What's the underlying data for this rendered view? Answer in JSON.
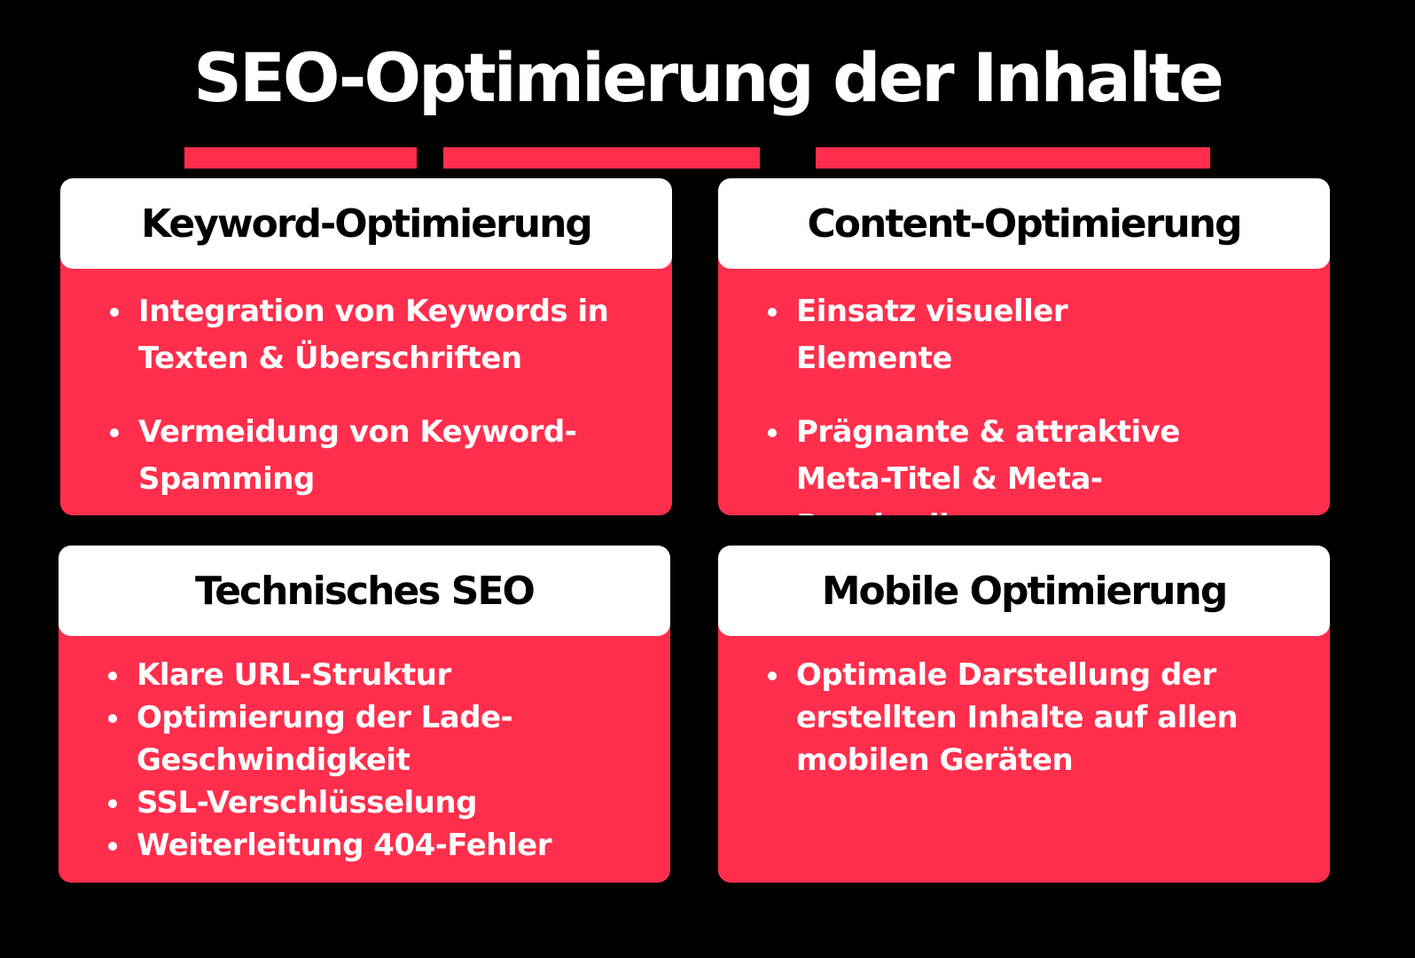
{
  "title": "SEO-Optimierung der Inhalte",
  "colors": {
    "background": "#000000",
    "accent": "#ff2e4c",
    "header_bg": "#ffffff"
  },
  "cards": [
    {
      "heading": "Keyword-Optimierung",
      "items": [
        "Integration von Keywords in Texten & Überschriften",
        "Vermeidung von Keyword-Spamming"
      ]
    },
    {
      "heading": "Content-Optimierung",
      "items": [
        "Einsatz visueller Elemente",
        "Prägnante & attraktive Meta-Titel & Meta-Beschreibungen"
      ]
    },
    {
      "heading": "Technisches SEO",
      "items": [
        "Klare URL-Struktur",
        "Optimierung der  Lade-Geschwindigkeit",
        "SSL-Verschlüsselung",
        "Weiterleitung 404-Fehler"
      ]
    },
    {
      "heading": "Mobile Optimierung",
      "items": [
        "Optimale Darstellung der erstellten Inhalte auf allen mobilen Geräten"
      ]
    }
  ]
}
